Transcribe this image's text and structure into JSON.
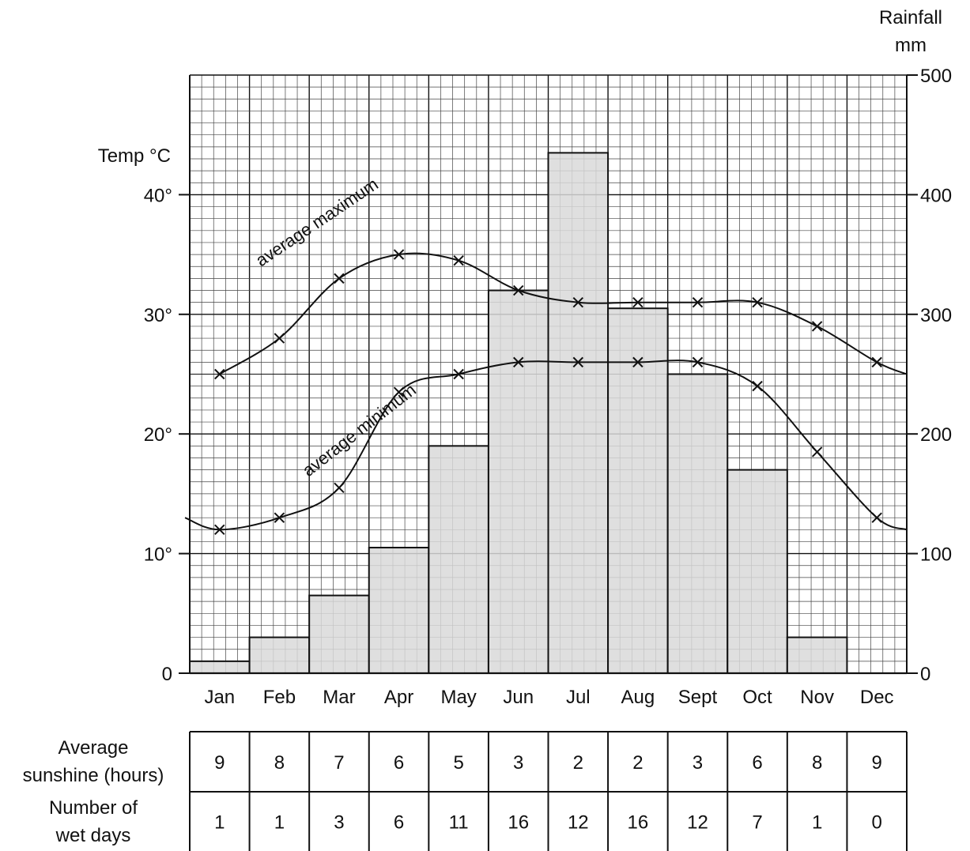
{
  "chart_data": {
    "type": "bar",
    "months": [
      "Jan",
      "Feb",
      "Mar",
      "Apr",
      "May",
      "Jun",
      "Jul",
      "Aug",
      "Sept",
      "Oct",
      "Nov",
      "Dec"
    ],
    "rainfall": {
      "axis_title_line1": "Rainfall",
      "axis_title_line2": "mm",
      "ylim": [
        0,
        500
      ],
      "ticks": [
        "0",
        "100",
        "200",
        "300",
        "400",
        "500"
      ],
      "values": [
        10,
        30,
        65,
        105,
        190,
        320,
        435,
        305,
        250,
        170,
        30,
        0
      ]
    },
    "temperature": {
      "axis_title": "Temp °C",
      "ylim": [
        0,
        50
      ],
      "ticks": [
        "0",
        "10°",
        "20°",
        "30°",
        "40°"
      ],
      "average_maximum": {
        "label": "average maximum",
        "values": [
          25,
          28,
          33,
          35,
          34.5,
          32,
          31,
          31,
          31,
          31,
          29,
          26
        ]
      },
      "average_minimum": {
        "label": "average minimum",
        "values": [
          12,
          13,
          15.5,
          23.5,
          25,
          26,
          26,
          26,
          26,
          24,
          18.5,
          13
        ]
      }
    },
    "grid": true,
    "table": {
      "rows": [
        {
          "label_line1": "Average",
          "label_line2": "sunshine (hours)",
          "values": [
            "9",
            "8",
            "7",
            "6",
            "5",
            "3",
            "2",
            "2",
            "3",
            "6",
            "8",
            "9"
          ]
        },
        {
          "label_line1": "Number of",
          "label_line2": "wet days",
          "values": [
            "1",
            "1",
            "3",
            "6",
            "11",
            "16",
            "12",
            "16",
            "12",
            "7",
            "1",
            "0"
          ]
        }
      ]
    }
  },
  "colors": {
    "bar_fill": "#d9d9d9",
    "line": "#111111",
    "grid_minor": "#444444",
    "grid_major": "#111111"
  }
}
